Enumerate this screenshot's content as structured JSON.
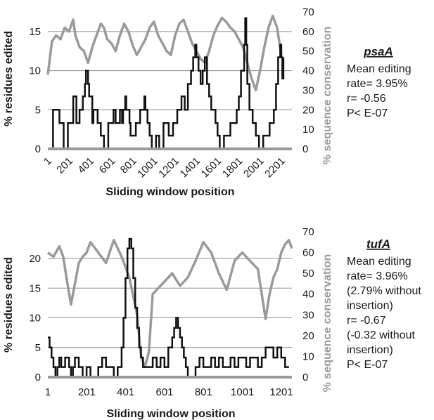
{
  "chart_data": [
    {
      "type": "line",
      "gene": "psaA",
      "xlabel": "Sliding window position",
      "ylabel": "% residues edited",
      "y2label": "% sequence conservation",
      "x_ticks": [
        "1",
        "201",
        "401",
        "601",
        "801",
        "1001",
        "1201",
        "1401",
        "1601",
        "1801",
        "2001",
        "2201"
      ],
      "xlim": [
        1,
        2300
      ],
      "ylim": [
        0,
        17.5
      ],
      "y_ticks": [
        0,
        5,
        10,
        15
      ],
      "y2lim": [
        0,
        70
      ],
      "y2_ticks": [
        0,
        10,
        20,
        30,
        40,
        50,
        60,
        70
      ],
      "grid": "horizontal",
      "annotation": [
        "Mean editing",
        "rate= 3.95%",
        "r= -0.56",
        "P< E-07"
      ],
      "colors": {
        "editing": "#111111",
        "conservation": "#9a9a9a"
      },
      "series": [
        {
          "axis": "left",
          "x": [
            1,
            40,
            50,
            100,
            110,
            140,
            150,
            180,
            190,
            220,
            240,
            260,
            270,
            290,
            300,
            320,
            330,
            350,
            360,
            380,
            390,
            420,
            430,
            460,
            470,
            490,
            500,
            520,
            530,
            560,
            570,
            600,
            620,
            640,
            650,
            680,
            690,
            700,
            710,
            730,
            740,
            770,
            780,
            820,
            830,
            860,
            870,
            900,
            910,
            920,
            940,
            960,
            980,
            1010,
            1020,
            1040,
            1050,
            1080,
            1090,
            1130,
            1140,
            1170,
            1180,
            1210,
            1220,
            1250,
            1260,
            1280,
            1290,
            1310,
            1320,
            1340,
            1350,
            1370,
            1390,
            1400,
            1420,
            1440,
            1460,
            1480,
            1500,
            1520,
            1540,
            1580,
            1600,
            1620,
            1640,
            1660,
            1690,
            1720,
            1760,
            1780,
            1800,
            1820,
            1850,
            1860,
            1870,
            1880,
            1900,
            1930,
            1960,
            1990,
            2010,
            2030,
            2060,
            2090,
            2110,
            2130,
            2150,
            2170,
            2190,
            2200,
            2210,
            2220
          ],
          "y": [
            0,
            0,
            5,
            5,
            3.3,
            3.3,
            0,
            0,
            3.3,
            3.3,
            6.7,
            6.7,
            3.3,
            3.3,
            5,
            5,
            6.7,
            8.3,
            10,
            8.3,
            6.7,
            3.3,
            5,
            5,
            3.3,
            3.3,
            1.7,
            1.7,
            0,
            0,
            3.3,
            3.3,
            5,
            3.3,
            3.3,
            5,
            5,
            3.3,
            5,
            6.7,
            5,
            3.3,
            1.7,
            1.7,
            3.3,
            3.3,
            5,
            5,
            6.7,
            5,
            3.3,
            1.7,
            0,
            0,
            1.7,
            1.7,
            0,
            0,
            3.3,
            3.3,
            1.7,
            1.7,
            3.3,
            3.3,
            5,
            5,
            6.7,
            6.7,
            5,
            5,
            8.3,
            8.3,
            10,
            11.7,
            13.3,
            11.7,
            10,
            8.3,
            10,
            11.7,
            8.3,
            6.7,
            5,
            3.3,
            1.7,
            0,
            0,
            1.7,
            1.7,
            3.3,
            3.3,
            5,
            6.7,
            10,
            13.3,
            16.7,
            13.3,
            8.3,
            5,
            3.3,
            1.7,
            0,
            0,
            1.7,
            1.7,
            3.3,
            3.3,
            5,
            8.3,
            11.7,
            13.3,
            11.7,
            9,
            11.7
          ]
        },
        {
          "axis": "right",
          "x": [
            1,
            40,
            80,
            120,
            160,
            200,
            240,
            260,
            300,
            340,
            380,
            420,
            460,
            500,
            530,
            560,
            600,
            640,
            680,
            720,
            760,
            800,
            840,
            880,
            920,
            960,
            1000,
            1040,
            1080,
            1120,
            1160,
            1200,
            1240,
            1280,
            1320,
            1360,
            1400,
            1440,
            1480,
            1520,
            1560,
            1600,
            1640,
            1680,
            1720,
            1760,
            1800,
            1840,
            1880,
            1920,
            1960,
            2000,
            2040,
            2080,
            2120,
            2160,
            2200
          ],
          "y": [
            38,
            55,
            58,
            56,
            62,
            60,
            66,
            58,
            52,
            50,
            44,
            52,
            58,
            64,
            62,
            56,
            54,
            50,
            58,
            64,
            60,
            53,
            48,
            52,
            56,
            62,
            65,
            58,
            54,
            50,
            48,
            58,
            64,
            66,
            60,
            54,
            50,
            46,
            44,
            50,
            58,
            63,
            67,
            65,
            62,
            60,
            56,
            52,
            44,
            36,
            30,
            40,
            52,
            62,
            68,
            62,
            48
          ]
        }
      ]
    },
    {
      "type": "line",
      "gene": "tufA",
      "xlabel": "Sliding window position",
      "ylabel": "% residues edited",
      "y2label": "% sequence conservation",
      "x_ticks": [
        "1",
        "201",
        "401",
        "601",
        "801",
        "1001",
        "1201"
      ],
      "xlim": [
        1,
        1255
      ],
      "ylim": [
        0,
        24.5
      ],
      "y_ticks": [
        0,
        5,
        10,
        15,
        20
      ],
      "y2lim": [
        0,
        70
      ],
      "y2_ticks": [
        0,
        10,
        20,
        30,
        40,
        50,
        60,
        70
      ],
      "grid": "horizontal",
      "annotation": [
        "Mean editing",
        "rate= 3.96%",
        "(2.79% without",
        "insertion)",
        "r= -0.67",
        "(-0.32 without",
        "insertion)",
        "P< E-07"
      ],
      "colors": {
        "editing": "#111111",
        "conservation": "#9a9a9a"
      },
      "series": [
        {
          "axis": "left",
          "x": [
            1,
            10,
            20,
            30,
            40,
            50,
            60,
            70,
            80,
            90,
            100,
            110,
            120,
            130,
            140,
            150,
            160,
            170,
            180,
            200,
            220,
            240,
            260,
            280,
            300,
            320,
            340,
            360,
            380,
            390,
            400,
            410,
            420,
            430,
            440,
            450,
            460,
            470,
            480,
            490,
            500,
            520,
            540,
            560,
            580,
            600,
            620,
            640,
            650,
            660,
            670,
            680,
            690,
            700,
            710,
            720,
            740,
            760,
            780,
            800,
            820,
            840,
            860,
            880,
            900,
            920,
            940,
            960,
            980,
            1000,
            1020,
            1040,
            1060,
            1080,
            1100,
            1120,
            1140,
            1160,
            1180,
            1200,
            1220,
            1240
          ],
          "y": [
            6.7,
            5,
            3.3,
            1.7,
            0,
            1.7,
            3.3,
            1.7,
            1.7,
            3.3,
            3.3,
            1.7,
            0,
            1.7,
            3.3,
            3.3,
            1.7,
            1.7,
            0,
            1.7,
            0,
            0,
            1.7,
            3.3,
            1.7,
            1.7,
            0,
            1.7,
            5,
            10,
            16.7,
            21.7,
            23.3,
            21.7,
            16.7,
            11.7,
            8.3,
            5,
            3.3,
            1.7,
            1.7,
            1.7,
            3.3,
            1.7,
            3.3,
            1.7,
            5,
            6.7,
            8.3,
            10,
            8.3,
            6.7,
            5,
            3.3,
            1.7,
            0,
            0,
            1.7,
            3.3,
            1.7,
            1.7,
            3.3,
            1.7,
            3.3,
            1.7,
            1.7,
            3.3,
            1.7,
            3.3,
            3.3,
            1.7,
            3.3,
            3.3,
            1.7,
            3.3,
            5,
            5,
            3.3,
            5,
            3.3,
            1.7,
            1.7
          ]
        },
        {
          "axis": "right",
          "x": [
            1,
            30,
            60,
            80,
            100,
            120,
            140,
            160,
            180,
            200,
            220,
            260,
            300,
            340,
            380,
            420,
            460,
            480,
            500,
            520,
            540,
            560,
            600,
            640,
            680,
            720,
            760,
            800,
            840,
            880,
            920,
            960,
            1000,
            1040,
            1080,
            1100,
            1120,
            1140,
            1160,
            1180,
            1200,
            1220,
            1240,
            1255
          ],
          "y": [
            60,
            58,
            63,
            58,
            46,
            35,
            45,
            55,
            58,
            60,
            65,
            60,
            55,
            66,
            58,
            48,
            30,
            10,
            5,
            12,
            40,
            42,
            46,
            50,
            44,
            48,
            56,
            65,
            60,
            50,
            42,
            56,
            60,
            56,
            52,
            40,
            28,
            40,
            48,
            52,
            60,
            64,
            66,
            62
          ]
        }
      ]
    }
  ]
}
